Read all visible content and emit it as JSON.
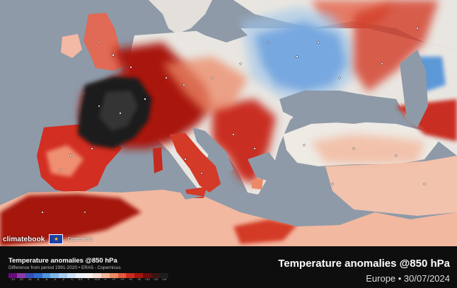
{
  "map": {
    "region": "Europe",
    "colors": {
      "sea": "#8e9aa8",
      "land_neutral": "#e9e6e1",
      "land_warm_light": "#f2b39a",
      "land_warm": "#e4593d",
      "land_hot": "#c11f1a",
      "land_very_hot": "#7a0d0d",
      "land_extreme": "#1d1d1d",
      "land_cool": "#9ec4ea",
      "land_cold": "#3d7fcf"
    }
  },
  "branding": {
    "logo": "climatebook",
    "eu_flag_icon": "eu-flag-icon",
    "partner": "Copernicus"
  },
  "legend": {
    "title": "Temperature anomalies @850 hPa",
    "subtitle": "Difference from period 1991-2020 • ERA5 - Copernicus",
    "ticks": [
      "-14",
      "-12",
      "-10",
      "-8",
      "-6",
      "-4",
      "-2",
      "-1",
      "-0.5",
      "0",
      "+0.5",
      "+1",
      "+2",
      "+4",
      "+6",
      "+8",
      "+10",
      "+12",
      "+14"
    ],
    "colors": [
      "#6a0a7a",
      "#8a3aa8",
      "#3b4bb8",
      "#2f6fcb",
      "#4f95df",
      "#7fb6ea",
      "#a9cdf1",
      "#cfe1f5",
      "#eaf1f9",
      "#f7f4f0",
      "#f8ddd0",
      "#f3b89d",
      "#ec8a67",
      "#e05a3c",
      "#c92d20",
      "#a3150f",
      "#6e0b0b",
      "#3a1515",
      "#1d1d1d"
    ]
  },
  "title": {
    "main": "Temperature anomalies @850 hPa",
    "sub": "Europe • 30/07/2024"
  }
}
